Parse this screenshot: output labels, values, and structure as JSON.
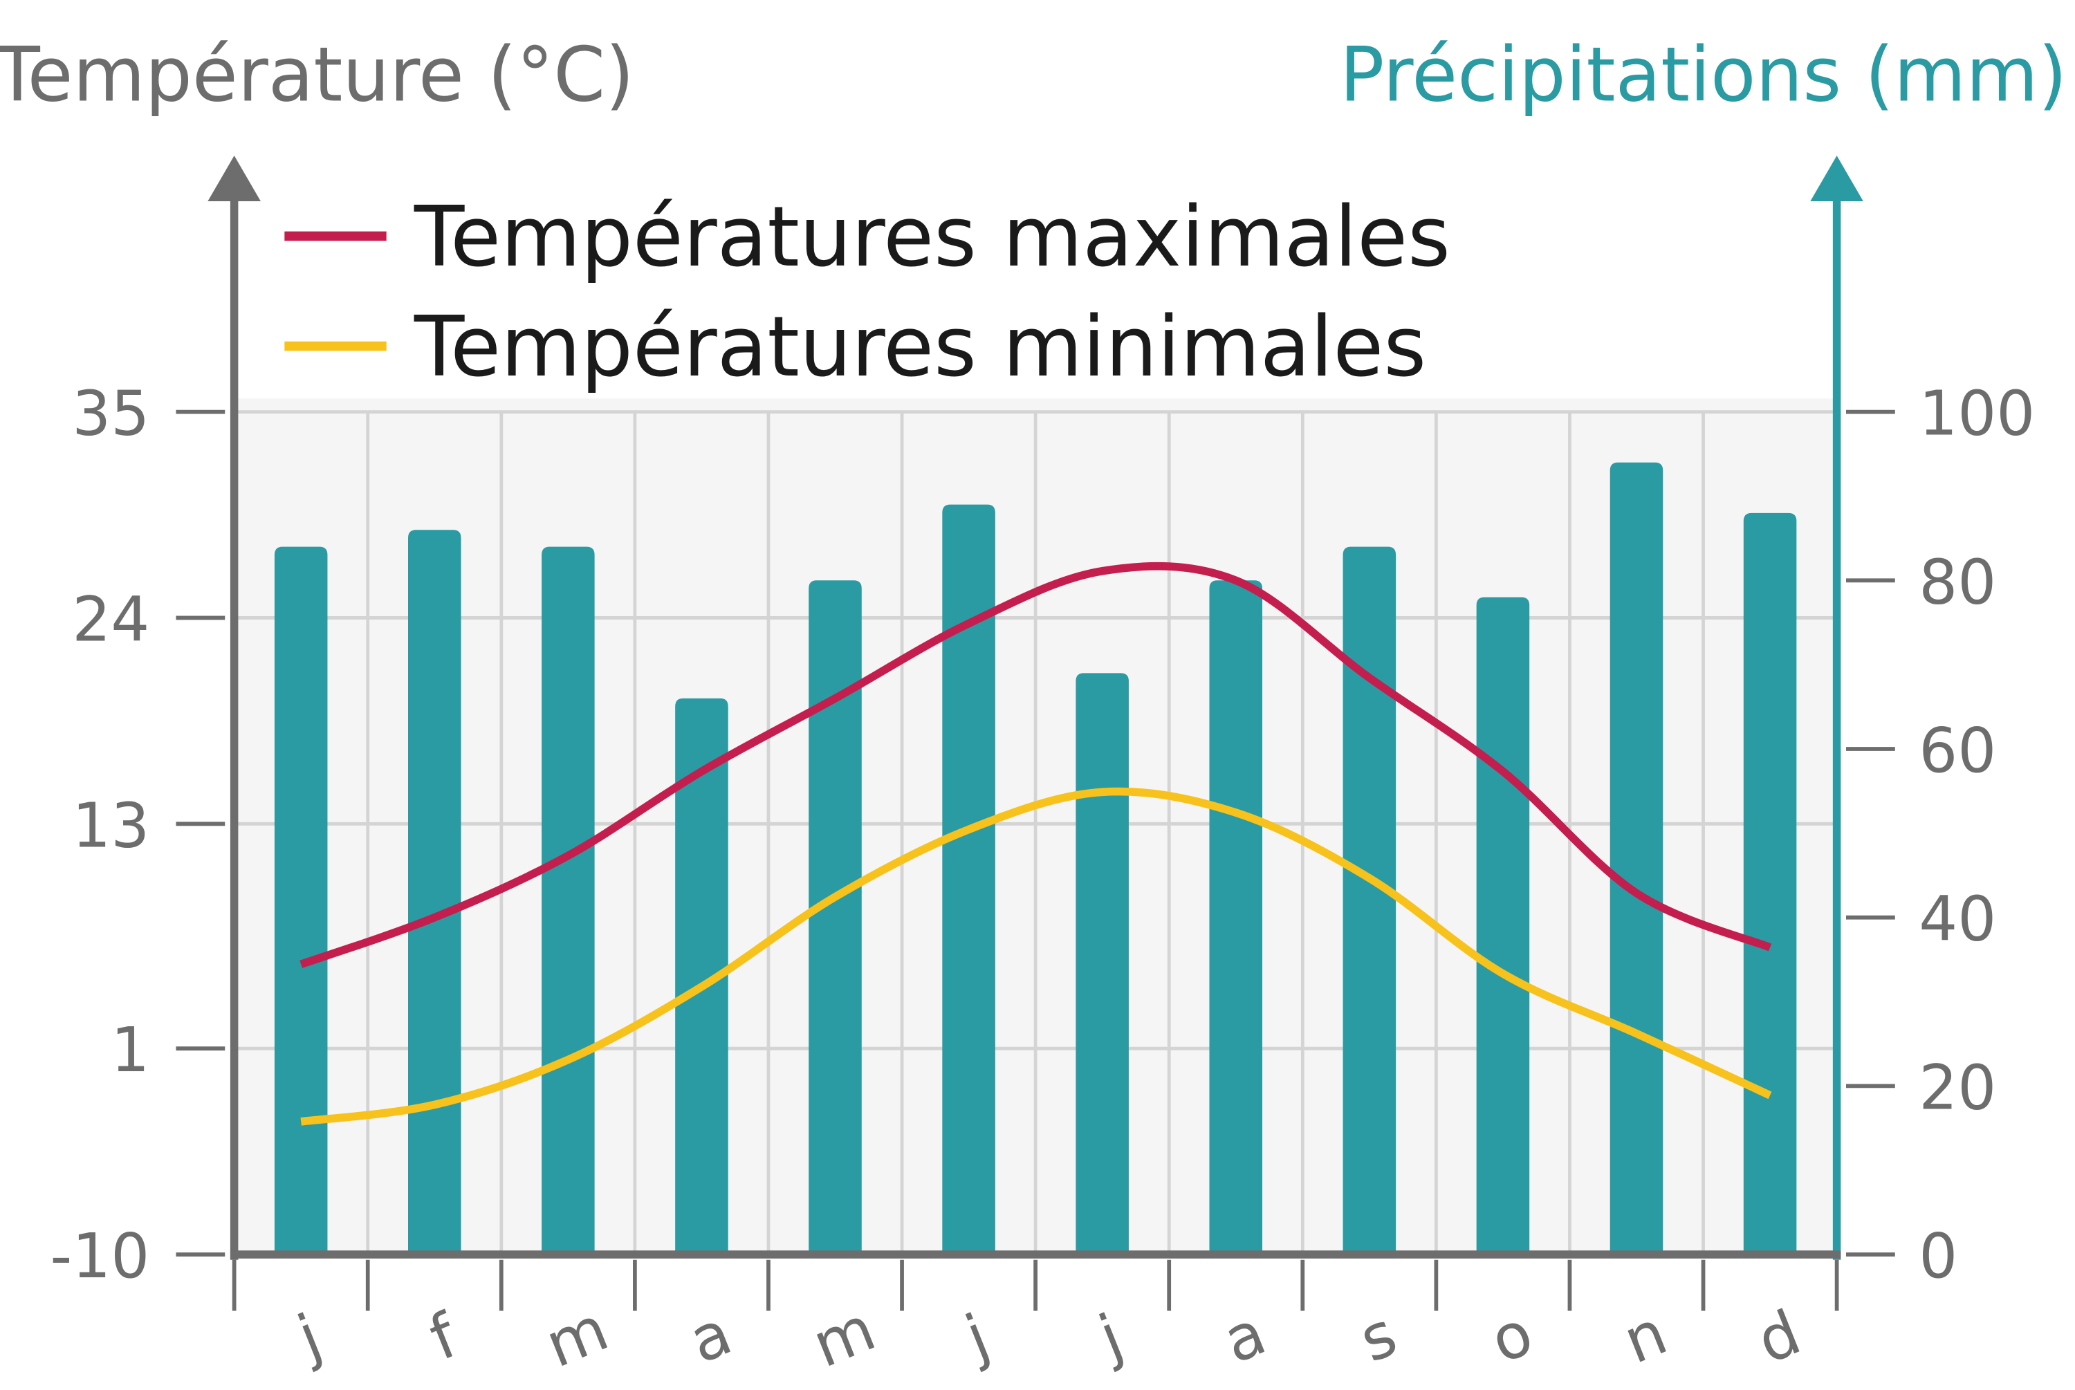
{
  "chart_data": {
    "type": "climate",
    "y_title": "Température (°C)",
    "y2_title": "Précipitations (mm)",
    "categories": [
      "j",
      "f",
      "m",
      "a",
      "m",
      "j",
      "j",
      "a",
      "s",
      "o",
      "n",
      "d"
    ],
    "ylim": [
      -10,
      35
    ],
    "yticks": [
      -10,
      1,
      13,
      24,
      35
    ],
    "y2lim": [
      0,
      100
    ],
    "y2ticks": [
      0,
      20,
      40,
      60,
      80,
      100
    ],
    "grid": true,
    "series": [
      {
        "name": "Précipitations",
        "type": "bar",
        "axis": "y2",
        "color": "#2a9ba3",
        "values": [
          84,
          86,
          84,
          66,
          80,
          89,
          69,
          80,
          84,
          78,
          94,
          88
        ]
      },
      {
        "name": "Températures maximales",
        "type": "line",
        "color": "#c41e4e",
        "values": [
          5.5,
          8,
          11.3,
          15.8,
          19.7,
          23.7,
          26.5,
          26,
          20.8,
          15.8,
          9.3,
          6.4
        ]
      },
      {
        "name": "Températures minimales",
        "type": "line",
        "color": "#f7c21b",
        "values": [
          -2.9,
          -2,
          0.4,
          4.3,
          9.1,
          12.7,
          14.7,
          13.6,
          10.1,
          5,
          1.8,
          -1.5
        ]
      }
    ]
  }
}
